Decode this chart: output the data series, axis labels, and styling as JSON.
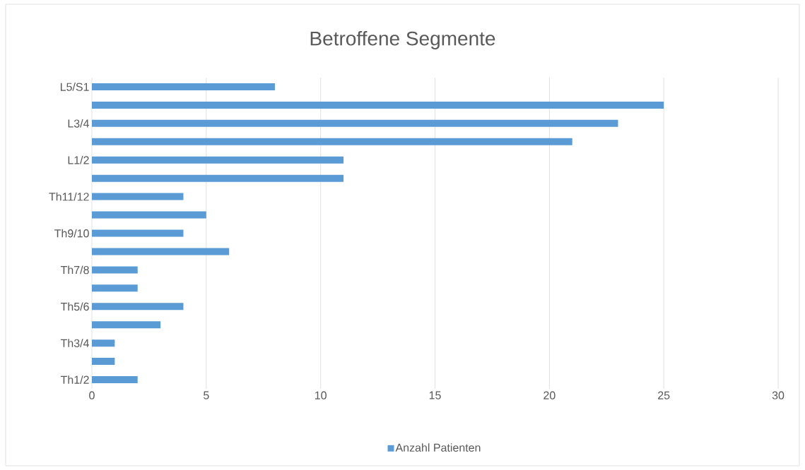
{
  "chart_data": {
    "type": "bar",
    "orientation": "horizontal",
    "title": "Betroffene Segmente",
    "categories": [
      "L5/S1",
      null,
      "L3/4",
      null,
      "L1/2",
      null,
      "Th11/12",
      null,
      "Th9/10",
      null,
      "Th7/8",
      null,
      "Th5/6",
      null,
      "Th3/4",
      null,
      "Th1/2"
    ],
    "series": [
      {
        "name": "Anzahl Patienten",
        "color": "#5b9bd5",
        "values": [
          8,
          25,
          23,
          21,
          11,
          11,
          4,
          5,
          4,
          6,
          2,
          2,
          4,
          3,
          1,
          1,
          2
        ]
      }
    ],
    "xlim": [
      0,
      30
    ],
    "xticks": [
      0,
      5,
      10,
      15,
      20,
      25,
      30
    ],
    "grid": "x",
    "legend": "bottom"
  }
}
